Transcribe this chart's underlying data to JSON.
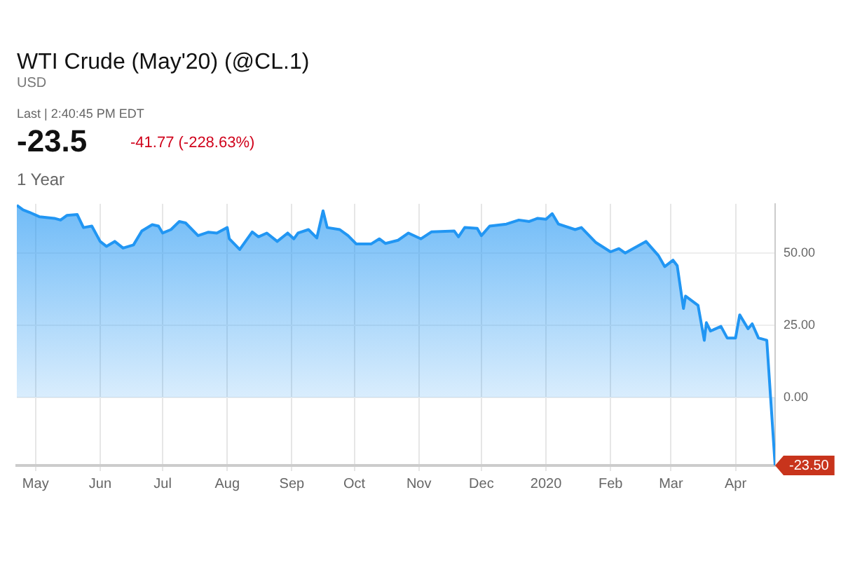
{
  "chart_data": {
    "type": "area",
    "title": "WTI Crude (May'20) (@CL.1)",
    "subtitle": "USD",
    "annotations": [
      "Last | 2:40:45 PM EDT",
      "-23.5",
      "-41.77 (-228.63%)",
      "1 Year",
      {
        "text": "-23.50",
        "x": "2020-04-20",
        "y": -23.5
      }
    ],
    "x": [
      "2019-04-22",
      "2019-04-25",
      "2019-04-28",
      "2019-05-03",
      "2019-05-10",
      "2019-05-13",
      "2019-05-16",
      "2019-05-21",
      "2019-05-24",
      "2019-05-28",
      "2019-06-01",
      "2019-06-04",
      "2019-06-08",
      "2019-06-12",
      "2019-06-17",
      "2019-06-21",
      "2019-06-26",
      "2019-06-29",
      "2019-07-01",
      "2019-07-05",
      "2019-07-09",
      "2019-07-12",
      "2019-07-18",
      "2019-07-23",
      "2019-07-27",
      "2019-08-01",
      "2019-08-02",
      "2019-08-07",
      "2019-08-13",
      "2019-08-16",
      "2019-08-20",
      "2019-08-25",
      "2019-08-30",
      "2019-09-02",
      "2019-09-04",
      "2019-09-09",
      "2019-09-13",
      "2019-09-16",
      "2019-09-18",
      "2019-09-24",
      "2019-09-28",
      "2019-10-02",
      "2019-10-09",
      "2019-10-13",
      "2019-10-16",
      "2019-10-22",
      "2019-10-27",
      "2019-11-02",
      "2019-11-07",
      "2019-11-18",
      "2019-11-20",
      "2019-11-23",
      "2019-11-29",
      "2019-12-01",
      "2019-12-05",
      "2019-12-13",
      "2019-12-19",
      "2019-12-24",
      "2019-12-28",
      "2020-01-01",
      "2020-01-04",
      "2020-01-07",
      "2020-01-15",
      "2020-01-18",
      "2020-01-25",
      "2020-02-01",
      "2020-02-05",
      "2020-02-08",
      "2020-02-18",
      "2020-02-24",
      "2020-02-27",
      "2020-03-02",
      "2020-03-04",
      "2020-03-07",
      "2020-03-08",
      "2020-03-14",
      "2020-03-17",
      "2020-03-18",
      "2020-03-20",
      "2020-03-25",
      "2020-03-28",
      "2020-04-01",
      "2020-04-03",
      "2020-04-07",
      "2020-04-09",
      "2020-04-12",
      "2020-04-16",
      "2020-04-20"
    ],
    "series": [
      {
        "color": "#2196f3",
        "values": [
          66.5,
          64.9,
          64.1,
          62.5,
          62,
          61.4,
          63,
          63.3,
          58.8,
          59.3,
          54,
          52.3,
          54,
          51.7,
          52.8,
          57.6,
          59.8,
          59.3,
          56.9,
          58.1,
          60.9,
          60.4,
          56,
          57.2,
          56.9,
          58.8,
          54.9,
          51.2,
          57.3,
          55.6,
          56.9,
          54,
          56.9,
          54.9,
          56.9,
          58.1,
          55.2,
          64.6,
          58.8,
          58.1,
          56,
          53.1,
          53.1,
          54.9,
          53.3,
          54.4,
          56.9,
          54.9,
          57.3,
          57.6,
          55.6,
          58.8,
          58.5,
          56,
          59.3,
          60,
          61.4,
          60.9,
          62,
          61.7,
          63.6,
          60,
          58.1,
          58.8,
          53.6,
          50.4,
          51.5,
          50,
          54,
          49.1,
          45.3,
          47.5,
          45.6,
          30.8,
          35.1,
          31.9,
          19.8,
          25.9,
          23,
          24.6,
          20.6,
          20.6,
          28.6,
          23.8,
          25.5,
          20.6,
          19.8,
          -23.5
        ]
      }
    ],
    "xlim": [
      "2019-04-22",
      "2020-04-20"
    ],
    "xticks": [
      {
        "value": "2019-05-01",
        "label": "May"
      },
      {
        "value": "2019-06-01",
        "label": "Jun"
      },
      {
        "value": "2019-07-01",
        "label": "Jul"
      },
      {
        "value": "2019-08-01",
        "label": "Aug"
      },
      {
        "value": "2019-09-01",
        "label": "Sep"
      },
      {
        "value": "2019-10-01",
        "label": "Oct"
      },
      {
        "value": "2019-11-01",
        "label": "Nov"
      },
      {
        "value": "2019-12-01",
        "label": "Dec"
      },
      {
        "value": "2020-01-01",
        "label": "2020"
      },
      {
        "value": "2020-02-01",
        "label": "Feb"
      },
      {
        "value": "2020-03-01",
        "label": "Mar"
      },
      {
        "value": "2020-04-01",
        "label": "Apr"
      }
    ],
    "ylim": [
      -23.5,
      67
    ],
    "yticks": [
      {
        "value": 0,
        "label": "0.00"
      },
      {
        "value": 25,
        "label": "25.00"
      },
      {
        "value": 50,
        "label": "50.00"
      }
    ],
    "grid": true
  }
}
